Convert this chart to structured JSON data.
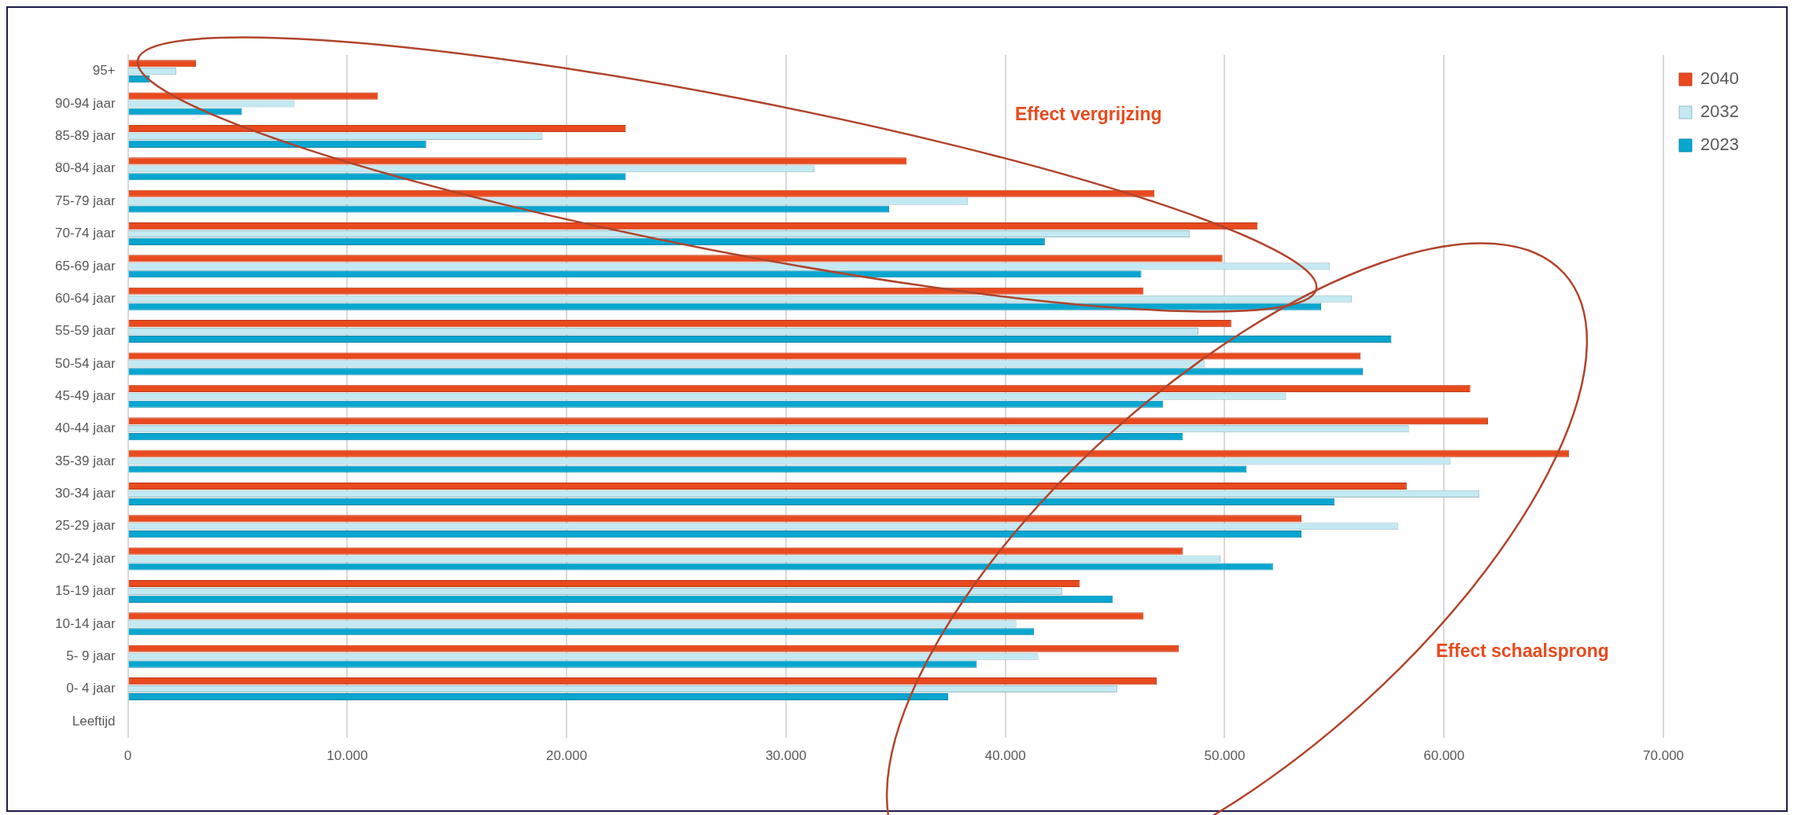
{
  "chart_data": {
    "type": "bar",
    "orientation": "horizontal",
    "categories": [
      "95+",
      "90-94 jaar",
      "85-89 jaar",
      "80-84 jaar",
      "75-79 jaar",
      "70-74 jaar",
      "65-69 jaar",
      "60-64 jaar",
      "55-59 jaar",
      "50-54 jaar",
      "45-49 jaar",
      "40-44 jaar",
      "35-39 jaar",
      "30-34 jaar",
      "25-29 jaar",
      "20-24 jaar",
      "15-19 jaar",
      "10-14 jaar",
      "5- 9 jaar",
      "0- 4 jaar",
      "Leeftijd"
    ],
    "series": [
      {
        "name": "2040",
        "color": "#e84a1e",
        "values": [
          3100,
          11400,
          22700,
          35500,
          46800,
          51500,
          49900,
          46300,
          50300,
          56200,
          61200,
          62000,
          65700,
          58300,
          53500,
          48100,
          43400,
          46300,
          47900,
          46900,
          null
        ]
      },
      {
        "name": "2032",
        "color": "#c3e9f3",
        "values": [
          2200,
          7600,
          18900,
          31300,
          38300,
          48400,
          54800,
          55800,
          48800,
          49100,
          52800,
          58400,
          60300,
          61600,
          57900,
          49800,
          42600,
          40500,
          41500,
          45100,
          null
        ]
      },
      {
        "name": "2023",
        "color": "#08a6d0",
        "values": [
          1000,
          5200,
          13600,
          22700,
          34700,
          41800,
          46200,
          54400,
          57600,
          56300,
          47200,
          48100,
          51000,
          55000,
          53500,
          52200,
          44900,
          41300,
          38700,
          37400,
          null
        ]
      }
    ],
    "xlim": [
      0,
      70000
    ],
    "xticks": [
      0,
      {
        "value": 10000,
        "label": "10.000"
      },
      {
        "value": 20000,
        "label": "20.000"
      },
      {
        "value": 30000,
        "label": "30.000"
      },
      {
        "value": 40000,
        "label": "40.000"
      },
      {
        "value": 50000,
        "label": "50.000"
      },
      {
        "value": 60000,
        "label": "60.000"
      },
      {
        "value": 70000,
        "label": "70.000"
      }
    ],
    "grid": "x",
    "legend": "top right",
    "annotations": [
      "Effect vergrijzing",
      "Effect schaalsprong"
    ]
  }
}
